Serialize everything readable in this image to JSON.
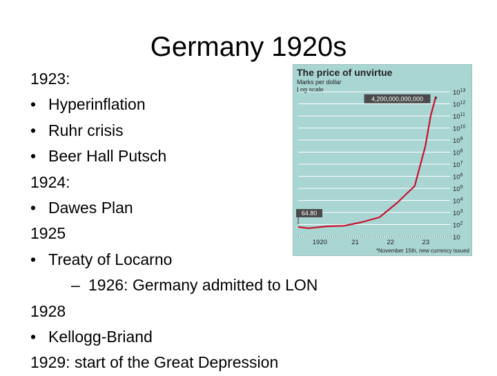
{
  "slide": {
    "title": "Germany 1920s",
    "lines": [
      {
        "kind": "heading",
        "text": "1923:"
      },
      {
        "kind": "bullet",
        "text": "Hyperinflation"
      },
      {
        "kind": "bullet",
        "text": "Ruhr crisis"
      },
      {
        "kind": "bullet",
        "text": "Beer Hall Putsch"
      },
      {
        "kind": "heading",
        "text": "1924:"
      },
      {
        "kind": "bullet",
        "text": "Dawes Plan"
      },
      {
        "kind": "heading",
        "text": "1925"
      },
      {
        "kind": "bullet",
        "text": "Treaty of Locarno"
      },
      {
        "kind": "sub",
        "text": "1926: Germany admitted to LON"
      },
      {
        "kind": "heading",
        "text": "1928"
      },
      {
        "kind": "bullet",
        "text": "Kellogg-Briand"
      },
      {
        "kind": "heading",
        "text": "1929: start of the Great Depression"
      }
    ],
    "bullet_glyph": "•",
    "sub_glyph": "–"
  },
  "chart_data": {
    "type": "line",
    "title": "The price of unvirtue",
    "subtitle": "Marks per dollar",
    "scale_note": "Log scale",
    "footnote": "*November 15th, new currency issued",
    "x_ticks": [
      "1920",
      "21",
      "22",
      "23"
    ],
    "y_scale": "log",
    "y_ticks": [
      {
        "base": "10",
        "exp": ""
      },
      {
        "base": "10",
        "exp": "2"
      },
      {
        "base": "10",
        "exp": "3"
      },
      {
        "base": "10",
        "exp": "4"
      },
      {
        "base": "10",
        "exp": "5"
      },
      {
        "base": "10",
        "exp": "6"
      },
      {
        "base": "10",
        "exp": "7"
      },
      {
        "base": "10",
        "exp": "8"
      },
      {
        "base": "10",
        "exp": "9"
      },
      {
        "base": "10",
        "exp": "10"
      },
      {
        "base": "10",
        "exp": "11"
      },
      {
        "base": "10",
        "exp": "12"
      },
      {
        "base": "10",
        "exp": "13"
      }
    ],
    "ylim_exponent": [
      1,
      13
    ],
    "xlim": [
      1919.7,
      1924.0
    ],
    "series": [
      {
        "x": [
          1919.7,
          1920.0,
          1920.5,
          1921.0,
          1921.5,
          1922.0,
          1922.5,
          1923.0,
          1923.3,
          1923.45,
          1923.6
        ],
        "y_exponent": [
          1.8,
          1.7,
          1.85,
          1.9,
          2.2,
          2.6,
          3.8,
          5.2,
          8.5,
          11.0,
          12.62
        ]
      }
    ],
    "annotations": [
      {
        "text": "64.80",
        "at": "start"
      },
      {
        "text": "4,200,000,000,000",
        "marker": "*",
        "at": "end"
      }
    ],
    "colors": {
      "background": "#a9d5d3",
      "grid": "#ffffff",
      "line": "#c8102e",
      "label_box": "#4a4a4a",
      "label_text": "#ffffff",
      "frame": "#8aa8a7"
    }
  }
}
